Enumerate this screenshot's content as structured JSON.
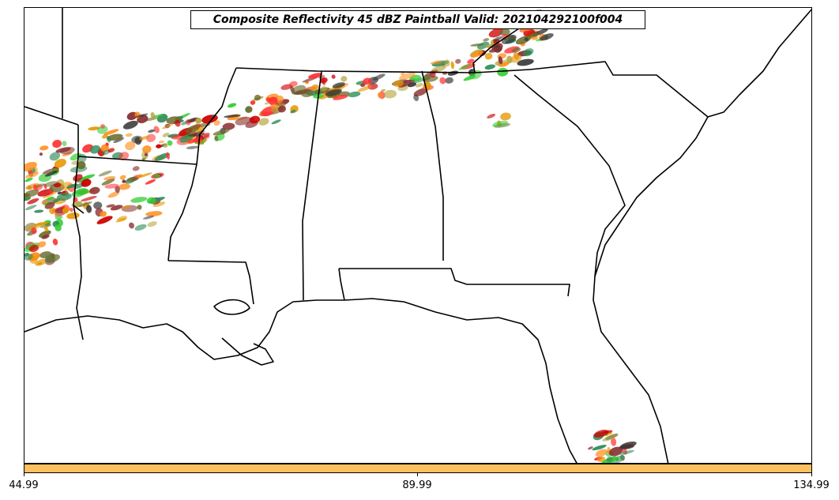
{
  "title": "Composite Reflectivity 45 dBZ Paintball Valid: 202104292100f004",
  "colorbar": {
    "color": "#ffc060",
    "ticks": [
      "44.99",
      "89.99",
      "134.99"
    ]
  },
  "map_style": {
    "land_color": "#ffffff",
    "border_color": "#000000",
    "paintball_colors": [
      "#ff3030",
      "#ff8c1a",
      "#e69500",
      "#33cc33",
      "#2e8b57",
      "#8b2f2f",
      "#b5a642",
      "#6b6b2e",
      "#333333",
      "#cc0000"
    ]
  }
}
